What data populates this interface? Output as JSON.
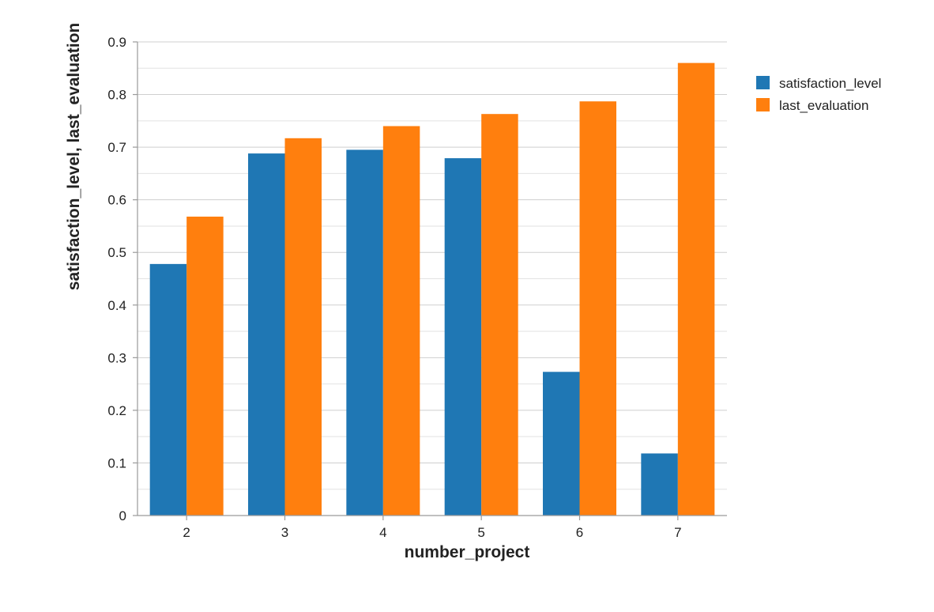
{
  "chart_data": {
    "type": "bar",
    "xlabel": "number_project",
    "ylabel": "satisfaction_level, last_evaluation",
    "ylim": [
      0,
      0.9
    ],
    "yticks": [
      "0",
      "0.1",
      "0.2",
      "0.3",
      "0.4",
      "0.5",
      "0.6",
      "0.7",
      "0.8",
      "0.9"
    ],
    "categories": [
      "2",
      "3",
      "4",
      "5",
      "6",
      "7"
    ],
    "series": [
      {
        "name": "satisfaction_level",
        "color": "#1f77b4",
        "values": [
          0.478,
          0.688,
          0.695,
          0.679,
          0.273,
          0.118
        ]
      },
      {
        "name": "last_evaluation",
        "color": "#ff7f0e",
        "values": [
          0.568,
          0.717,
          0.74,
          0.763,
          0.787,
          0.86
        ]
      }
    ],
    "grid": true,
    "legend": "top-right"
  }
}
